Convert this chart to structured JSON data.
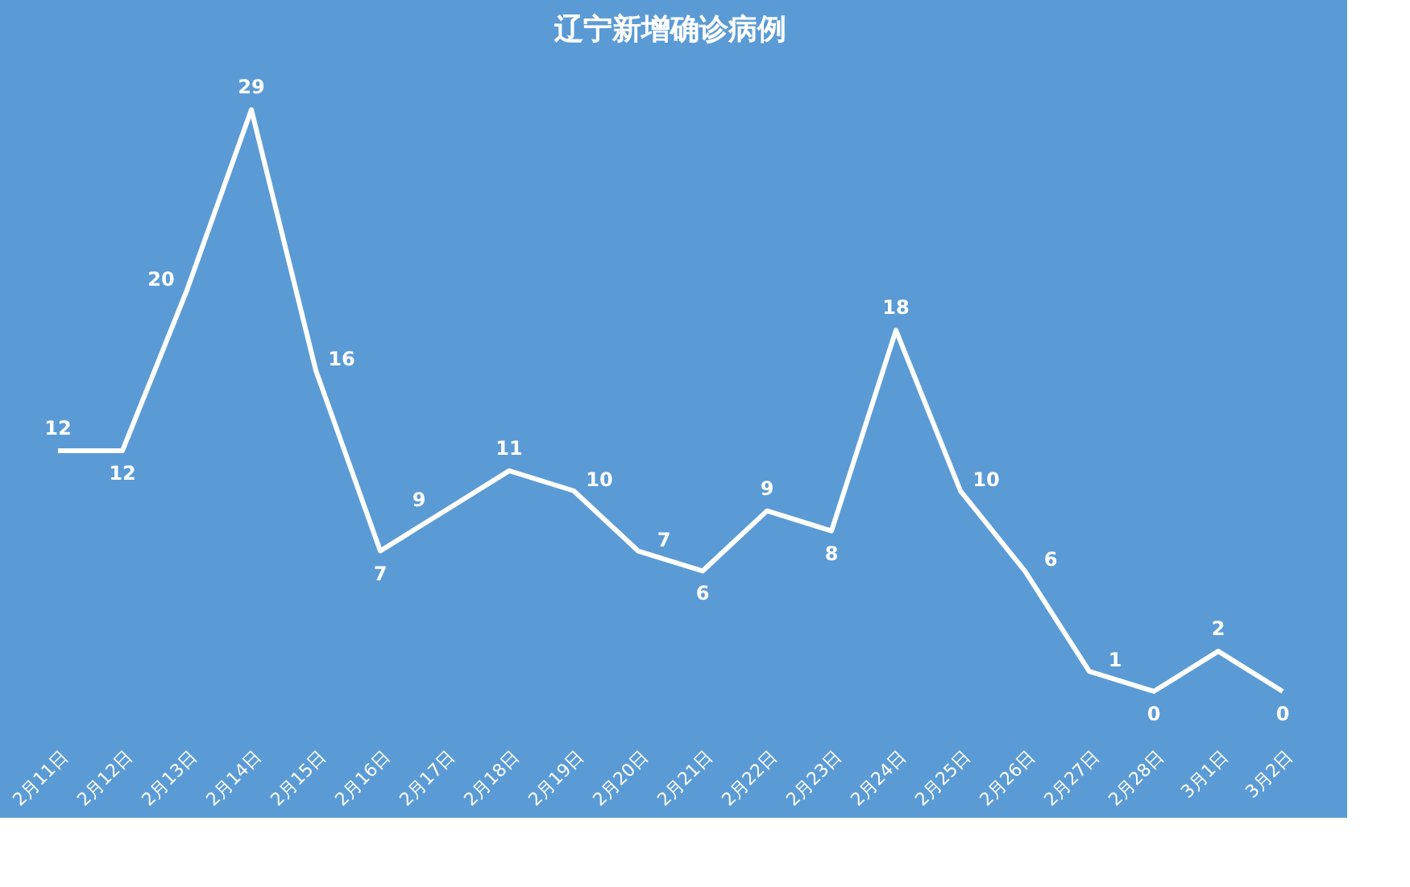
{
  "chart_data": {
    "type": "line",
    "title": "辽宁新增确诊病例",
    "categories": [
      "2月11日",
      "2月12日",
      "2月13日",
      "2月14日",
      "2月15日",
      "2月16日",
      "2月17日",
      "2月18日",
      "2月19日",
      "2月20日",
      "2月21日",
      "2月22日",
      "2月23日",
      "2月24日",
      "2月25日",
      "2月26日",
      "2月27日",
      "2月28日",
      "3月1日",
      "3月2日"
    ],
    "series": [
      {
        "color": "#ffffff",
        "values": [
          12,
          12,
          20,
          29,
          16,
          7,
          9,
          11,
          10,
          7,
          6,
          9,
          8,
          18,
          10,
          6,
          1,
          0,
          2,
          0
        ]
      }
    ],
    "data_labels": true,
    "marker": "none",
    "line_style": "solid",
    "tick_labels": "x"
  }
}
